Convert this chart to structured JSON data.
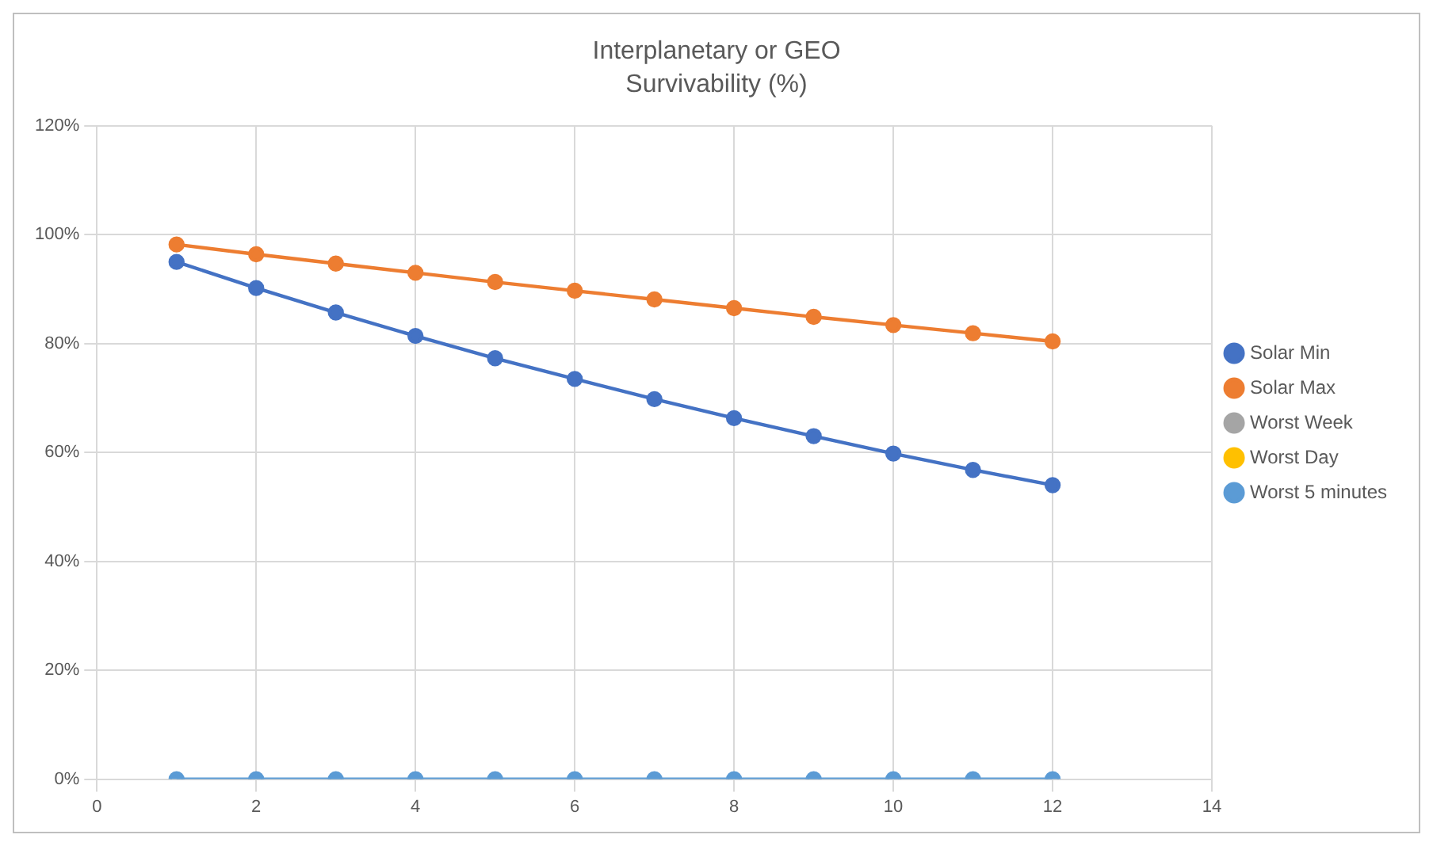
{
  "chart_data": {
    "type": "line",
    "title": "Interplanetary or GEO",
    "subtitle": "Survivability (%)",
    "x": [
      1,
      2,
      3,
      4,
      5,
      6,
      7,
      8,
      9,
      10,
      11,
      12
    ],
    "series": [
      {
        "name": "Solar Min",
        "color": "#4472c4",
        "values": [
          95,
          90.2,
          85.7,
          81.4,
          77.3,
          73.5,
          69.8,
          66.3,
          63,
          59.8,
          56.8,
          54
        ]
      },
      {
        "name": "Solar Max",
        "color": "#ed7d31",
        "values": [
          98.2,
          96.4,
          94.7,
          93,
          91.3,
          89.7,
          88.1,
          86.5,
          84.9,
          83.4,
          81.9,
          80.4
        ]
      },
      {
        "name": "Worst Week",
        "color": "#a5a5a5",
        "values": [
          null,
          null,
          null,
          null,
          null,
          null,
          null,
          null,
          null,
          null,
          null,
          null
        ]
      },
      {
        "name": "Worst Day",
        "color": "#ffc000",
        "values": [
          null,
          null,
          null,
          null,
          null,
          null,
          null,
          null,
          null,
          null,
          null,
          null
        ]
      },
      {
        "name": "Worst 5 minutes",
        "color": "#5b9bd5",
        "values": [
          0,
          0,
          0,
          0,
          0,
          0,
          0,
          0,
          0,
          0,
          0,
          0
        ]
      }
    ],
    "xlim": [
      0,
      14
    ],
    "xticks": [
      0,
      2,
      4,
      6,
      8,
      10,
      12,
      14
    ],
    "ylim": [
      0,
      120
    ],
    "yticks": [
      {
        "value": 0,
        "label": "0%"
      },
      {
        "value": 20,
        "label": "20%"
      },
      {
        "value": 40,
        "label": "40%"
      },
      {
        "value": 60,
        "label": "60%"
      },
      {
        "value": 80,
        "label": "80%"
      },
      {
        "value": 100,
        "label": "100%"
      },
      {
        "value": 120,
        "label": "120%"
      }
    ],
    "grid": true,
    "legend": "right",
    "marker": "circle",
    "line_style": "solid"
  }
}
